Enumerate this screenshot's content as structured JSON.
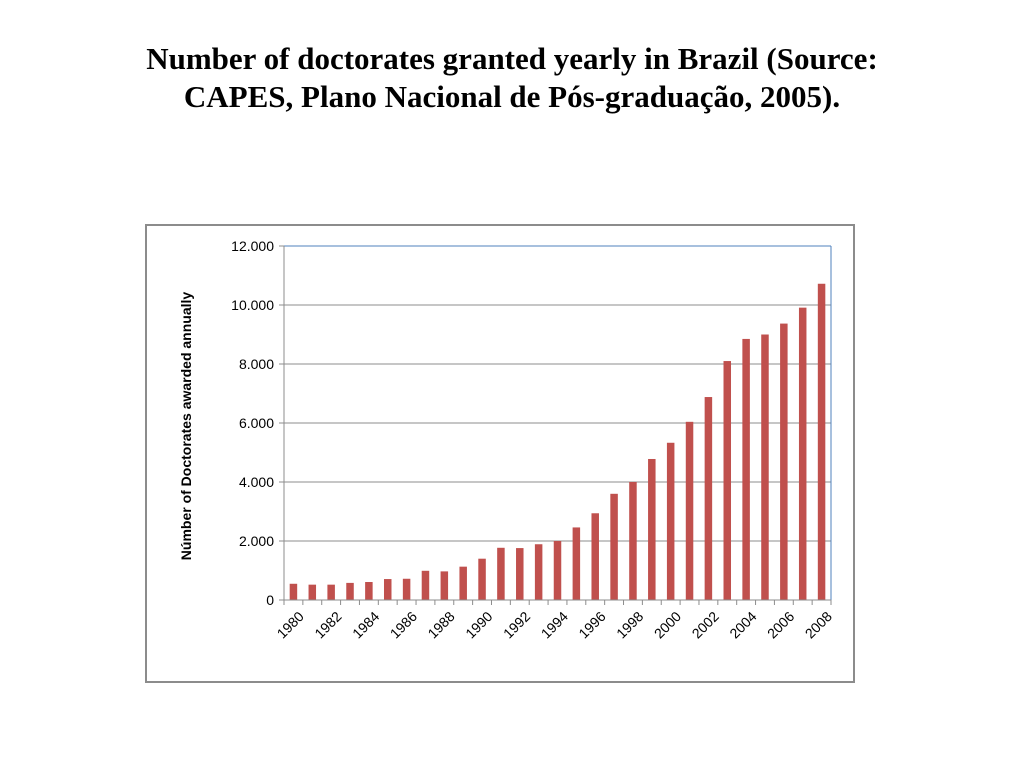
{
  "slide": {
    "title_line1": "Number of doctorates granted yearly in Brazil (Source:",
    "title_line2": "CAPES, Plano Nacional de Pós-graduação, 2005)."
  },
  "chart_data": {
    "type": "bar",
    "title": "",
    "xlabel": "",
    "ylabel": "Númber of Doctorates awarded annually",
    "categories": [
      "1980",
      "1981",
      "1982",
      "1983",
      "1984",
      "1985",
      "1986",
      "1987",
      "1988",
      "1989",
      "1990",
      "1991",
      "1992",
      "1993",
      "1994",
      "1995",
      "1996",
      "1997",
      "1998",
      "1999",
      "2000",
      "2001",
      "2002",
      "2003",
      "2004",
      "2005",
      "2006",
      "2007",
      "2008"
    ],
    "x_tick_labels": [
      "1980",
      "1982",
      "1984",
      "1986",
      "1988",
      "1990",
      "1992",
      "1994",
      "1996",
      "1998",
      "2000",
      "2002",
      "2004",
      "2006",
      "2008"
    ],
    "values": [
      550,
      520,
      520,
      580,
      610,
      710,
      720,
      990,
      970,
      1130,
      1400,
      1770,
      1760,
      1890,
      2000,
      2460,
      2940,
      3600,
      4000,
      4780,
      5330,
      6040,
      6880,
      8100,
      8850,
      9000,
      9370,
      9910,
      10720
    ],
    "ylim": [
      0,
      12000
    ],
    "y_ticks": [
      0,
      2000,
      4000,
      6000,
      8000,
      10000,
      12000
    ],
    "y_tick_labels": [
      "0",
      "2.000",
      "4.000",
      "6.000",
      "8.000",
      "10.000",
      "12.000"
    ],
    "grid": true,
    "legend": "none",
    "bar_color": "#c0504d",
    "grid_color": "#8c8c8c",
    "axis_color": "#4f81bd"
  }
}
